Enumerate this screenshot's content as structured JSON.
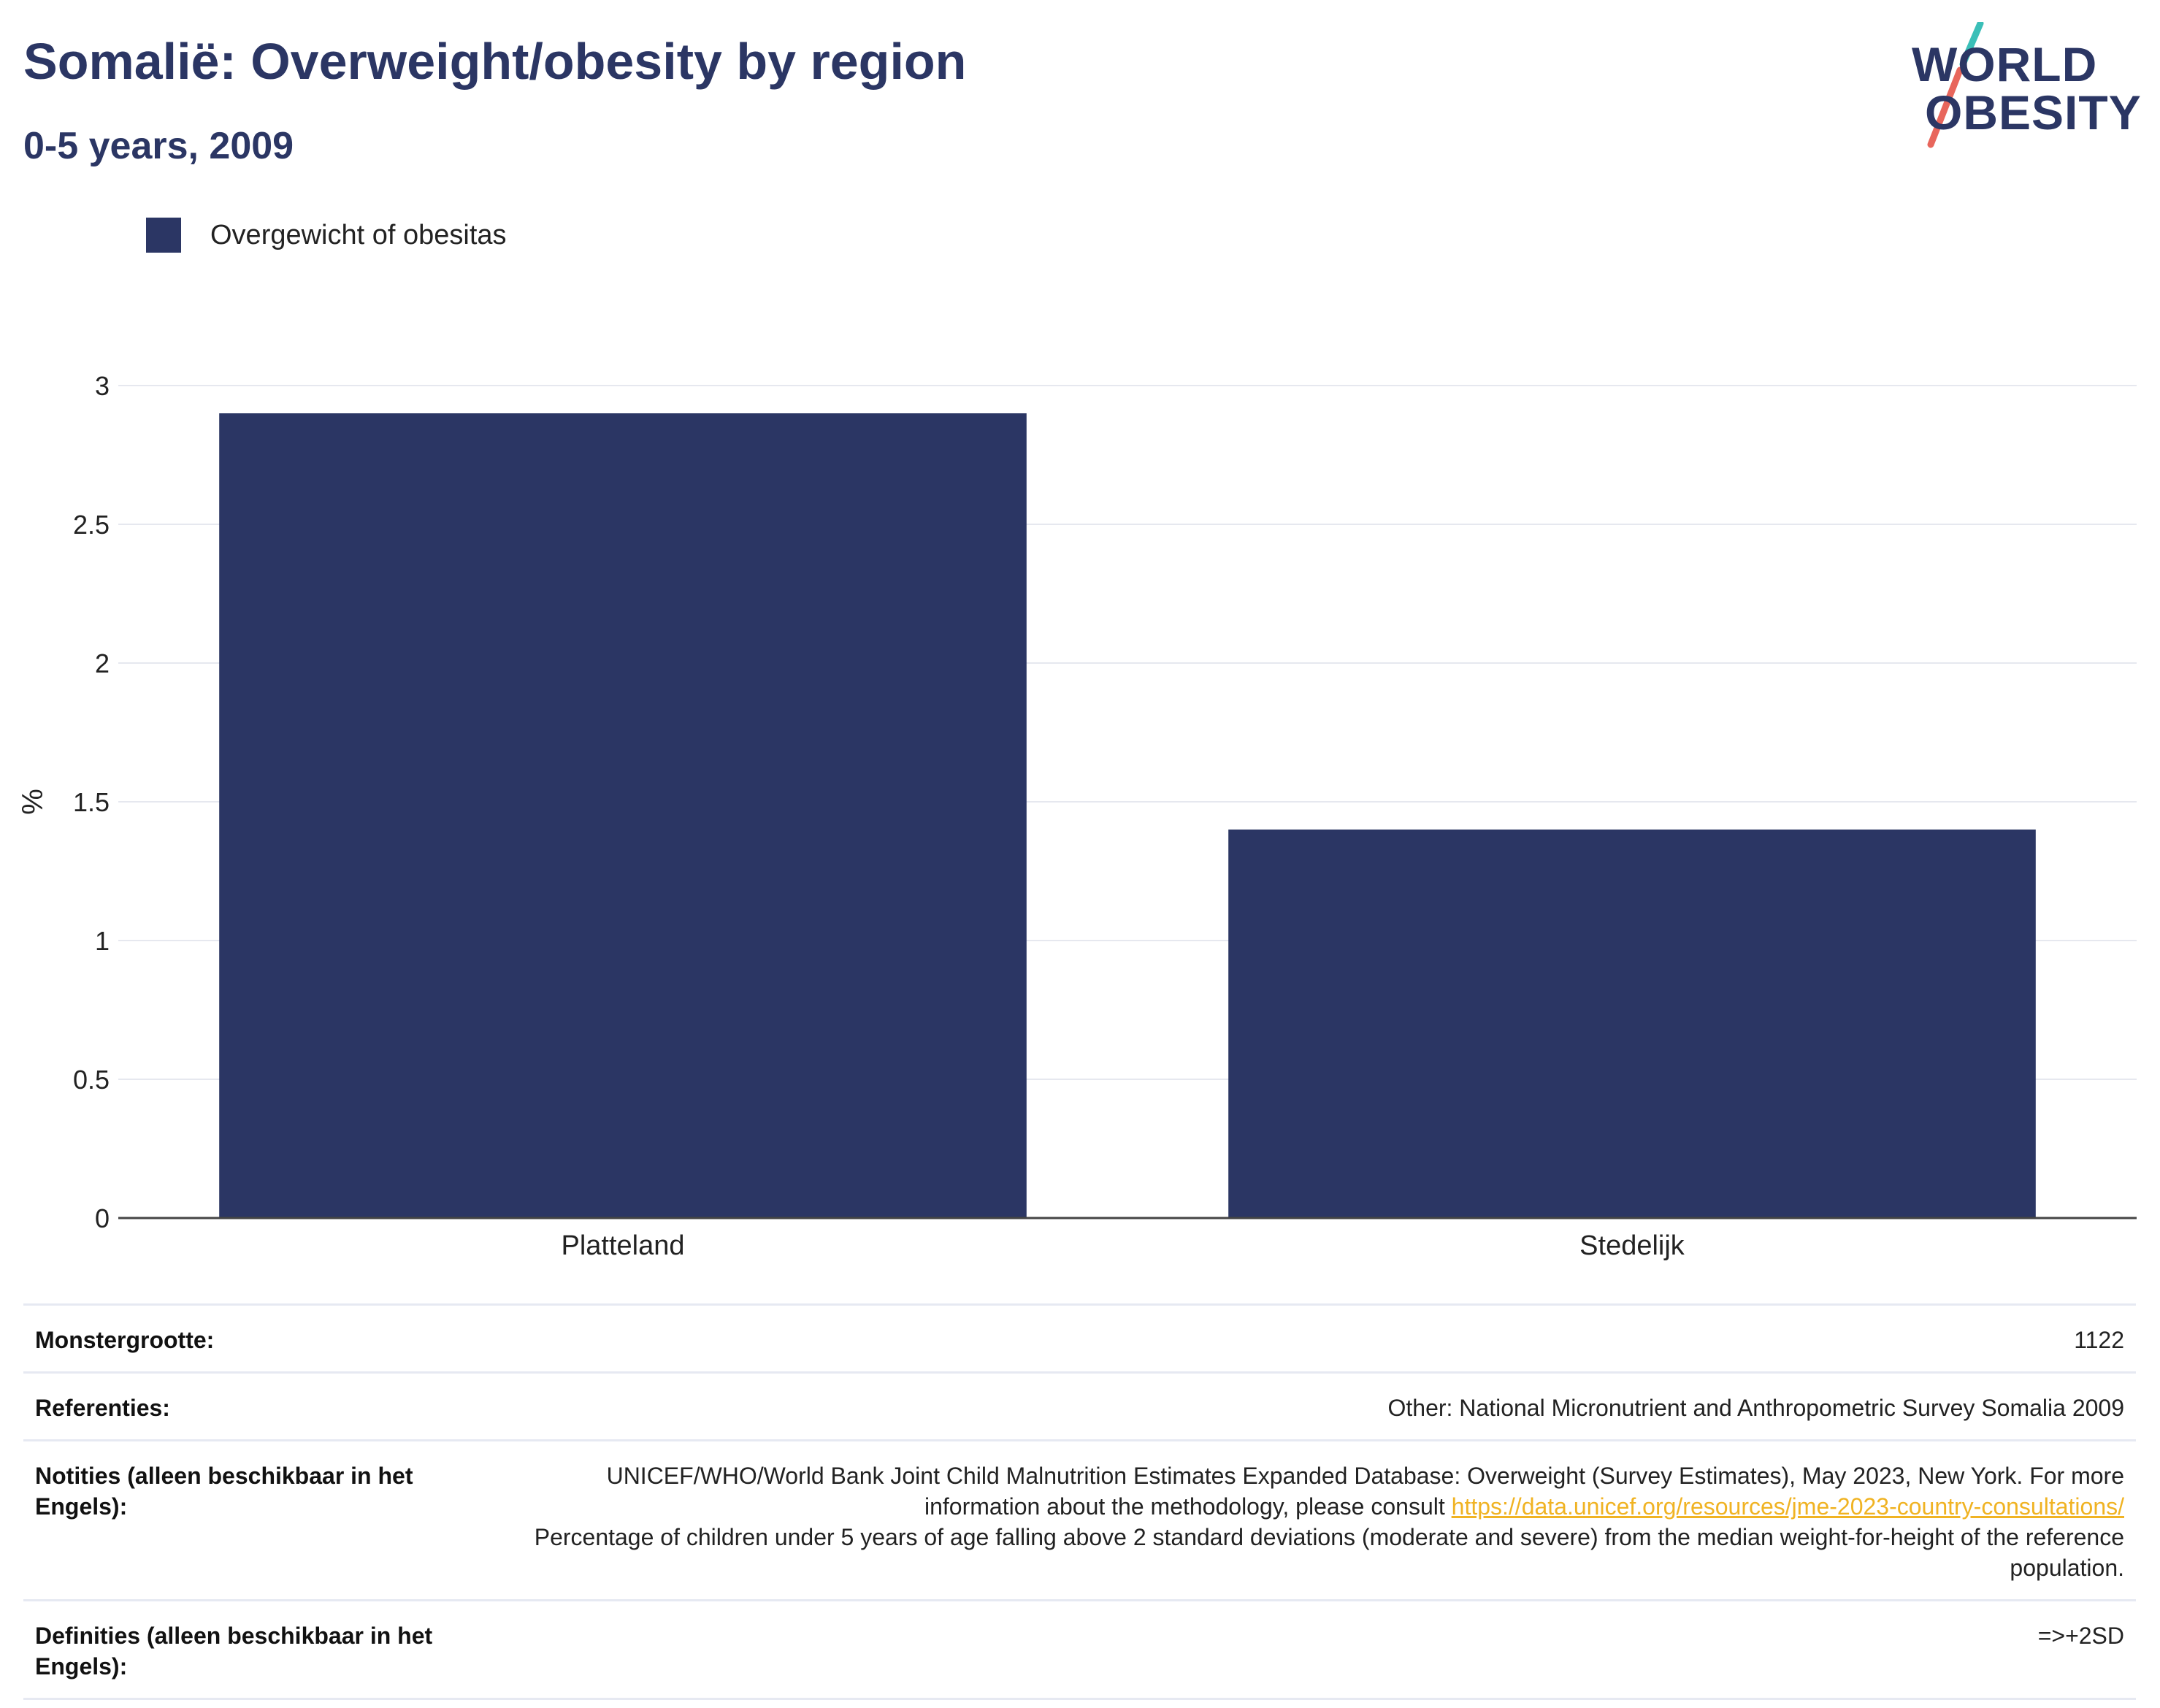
{
  "header": {
    "title": "Somalië: Overweight/obesity by region",
    "subtitle": "0-5 years, 2009"
  },
  "logo": {
    "line1": "WORLD",
    "line2": "OBESITY",
    "colors": {
      "text": "#2b3664",
      "slash_top": "#3bbfb8",
      "slash_bottom": "#e8665c"
    }
  },
  "legend": {
    "label": "Overgewicht of obesitas"
  },
  "chart_data": {
    "type": "bar",
    "title": "Somalië: Overweight/obesity by region",
    "subtitle": "0-5 years, 2009",
    "categories": [
      "Platteland",
      "Stedelijk"
    ],
    "series": [
      {
        "name": "Overgewicht of obesitas",
        "values": [
          2.9,
          1.4
        ],
        "color": "#2b3664"
      }
    ],
    "xlabel": "",
    "ylabel": "%",
    "ylim": [
      0,
      3
    ],
    "yticks": [
      0,
      0.5,
      1,
      1.5,
      2,
      2.5,
      3
    ],
    "ytick_labels": [
      "0",
      "0.5",
      "1",
      "1.5",
      "2",
      "2.5",
      "3"
    ],
    "grid": true,
    "legend_position": "top-left"
  },
  "info": {
    "sample_label": "Monstergrootte:",
    "sample_value": "1122",
    "refs_label": "Referenties:",
    "refs_value": "Other: National Micronutrient and Anthropometric Survey Somalia 2009",
    "notes_label": "Notities (alleen beschikbaar in het Engels):",
    "notes_line1": "UNICEF/WHO/World Bank Joint Child Malnutrition Estimates Expanded Database: Overweight (Survey Estimates), May 2023, New York. For more information about the methodology, please consult",
    "notes_link": "https://data.unicef.org/resources/jme-2023-country-consultations/",
    "notes_line2": "Percentage of children under 5 years of age falling above 2 standard deviations (moderate and severe) from the median weight-for-height of the reference population.",
    "defs_label": "Definities (alleen beschikbaar in het Engels):",
    "defs_value": "=>+2SD"
  }
}
